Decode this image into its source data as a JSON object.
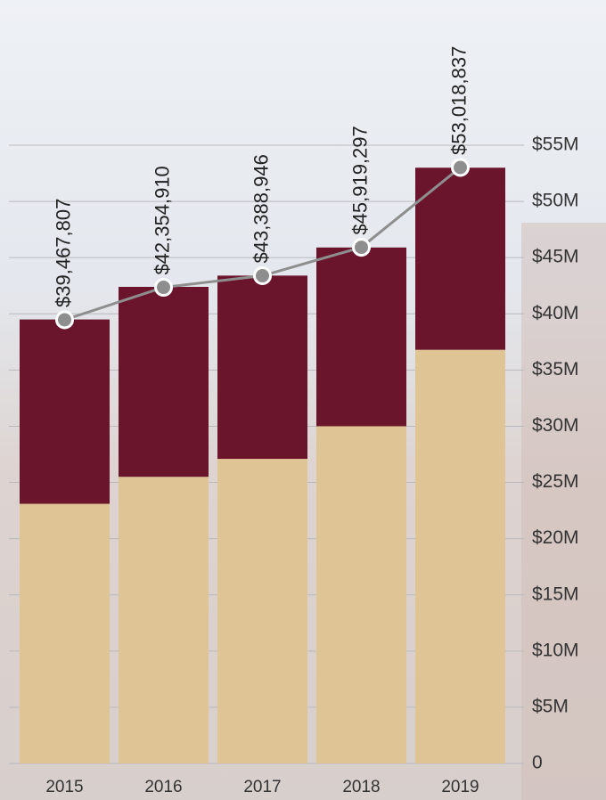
{
  "chart_data": {
    "type": "bar",
    "stacked": true,
    "categories": [
      "2015",
      "2016",
      "2017",
      "2018",
      "2019"
    ],
    "series": [
      {
        "color": "#dfc596",
        "values": [
          23100000,
          25500000,
          27100000,
          30000000,
          36800000
        ]
      },
      {
        "color": "#6b152d",
        "values": [
          16400000,
          16900000,
          16300000,
          15900000,
          16200000
        ]
      },
      {
        "type": "line",
        "color": "#8e8e8e",
        "values": [
          39467807,
          42354910,
          43388946,
          45919297,
          53018837
        ],
        "value_labels": [
          "$39,467,807",
          "$42,354,910",
          "$43,388,946",
          "$45,919,297",
          "$53,018,837"
        ]
      }
    ],
    "ylim": [
      0,
      55000000
    ],
    "yticks": [
      0,
      {
        "value": 5000000,
        "label": "$5M"
      },
      {
        "value": 10000000,
        "label": "$10M"
      },
      {
        "value": 15000000,
        "label": "$15M"
      },
      {
        "value": 20000000,
        "label": "$20M"
      },
      {
        "value": 25000000,
        "label": "$25M"
      },
      {
        "value": 30000000,
        "label": "$30M"
      },
      {
        "value": 35000000,
        "label": "$35M"
      },
      {
        "value": 40000000,
        "label": "$40M"
      },
      {
        "value": 45000000,
        "label": "$45M"
      },
      {
        "value": 50000000,
        "label": "$50M"
      },
      {
        "value": 55000000,
        "label": "$55M"
      }
    ],
    "grid": true
  }
}
